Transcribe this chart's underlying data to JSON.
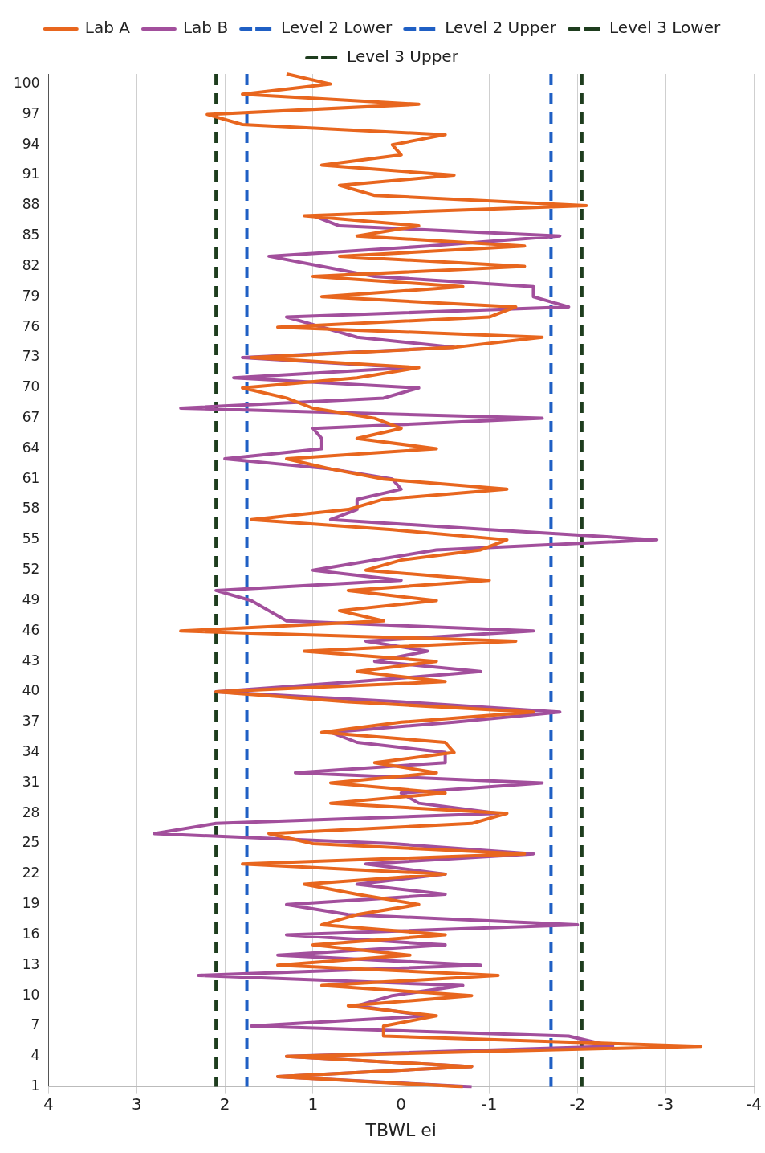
{
  "chart_data": {
    "type": "line",
    "orientation": "horizontal",
    "xlabel": "TBWL ei",
    "categories": [
      null,
      "100",
      null,
      null,
      "97",
      null,
      null,
      "94",
      null,
      null,
      "91",
      null,
      null,
      "88",
      null,
      null,
      "85",
      null,
      null,
      "82",
      null,
      null,
      "79",
      null,
      null,
      "76",
      null,
      null,
      "73",
      null,
      null,
      "70",
      null,
      null,
      "67",
      null,
      null,
      "64",
      null,
      null,
      "61",
      null,
      null,
      "58",
      null,
      null,
      "55",
      null,
      null,
      "52",
      null,
      null,
      "49",
      null,
      null,
      "46",
      null,
      null,
      "43",
      null,
      null,
      "40",
      null,
      null,
      "37",
      null,
      null,
      "34",
      null,
      null,
      "31",
      null,
      null,
      "28",
      null,
      null,
      "25",
      null,
      null,
      "22",
      null,
      null,
      "19",
      null,
      null,
      "16",
      null,
      null,
      "13",
      null,
      null,
      "10",
      null,
      null,
      "7",
      null,
      null,
      "4",
      null,
      null,
      "1"
    ],
    "series": [
      {
        "name": "Lab A",
        "color": "#e8661e",
        "values": [
          1.3,
          0.8,
          1.8,
          -0.2,
          2.2,
          1.8,
          -0.5,
          0.1,
          0.0,
          0.9,
          -0.6,
          0.7,
          0.3,
          -2.1,
          1.1,
          -0.2,
          0.5,
          -1.4,
          0.7,
          -1.4,
          1.0,
          -0.7,
          0.9,
          -1.3,
          -1.0,
          1.4,
          -1.6,
          -0.6,
          1.7,
          -0.2,
          0.5,
          1.8,
          1.3,
          1.0,
          0.3,
          0.0,
          0.5,
          -0.4,
          1.3,
          0.8,
          0.2,
          -1.2,
          0.2,
          0.6,
          1.7,
          0.1,
          -1.2,
          -0.9,
          0.0,
          0.4,
          -1.0,
          0.6,
          -0.4,
          0.7,
          0.2,
          2.5,
          -1.3,
          1.1,
          -0.4,
          0.5,
          -0.5,
          2.1,
          0.6,
          -1.5,
          0.0,
          0.9,
          -0.5,
          -0.6,
          0.3,
          -0.4,
          0.8,
          -0.5,
          0.8,
          -1.2,
          -0.8,
          1.5,
          1.0,
          -1.4,
          1.8,
          -0.5,
          1.1,
          0.5,
          -0.2,
          0.5,
          0.9,
          -0.5,
          1.0,
          -0.1,
          1.4,
          -1.1,
          0.9,
          -0.8,
          0.6,
          -0.4,
          0.2,
          0.2,
          -3.4,
          1.3,
          -0.8,
          1.4,
          -0.7
        ]
      },
      {
        "name": "Lab B",
        "color": "#a24f9c",
        "values": [
          null,
          null,
          null,
          null,
          null,
          null,
          null,
          null,
          null,
          null,
          null,
          null,
          null,
          null,
          1.0,
          0.7,
          -1.8,
          -0.3,
          1.5,
          0.9,
          0.3,
          -1.5,
          -1.5,
          -1.9,
          1.3,
          0.9,
          0.5,
          -0.6,
          1.8,
          -0.1,
          1.9,
          -0.2,
          0.2,
          2.5,
          -1.6,
          1.0,
          0.9,
          0.9,
          2.0,
          0.8,
          0.1,
          0.0,
          0.5,
          0.5,
          0.8,
          -1.0,
          -2.9,
          -0.4,
          0.3,
          1.0,
          0.0,
          2.1,
          1.7,
          1.5,
          1.3,
          -1.5,
          0.4,
          -0.3,
          0.3,
          -0.9,
          0.5,
          2.1,
          0.0,
          -1.8,
          -0.6,
          0.8,
          0.5,
          -0.5,
          -0.5,
          1.2,
          -1.6,
          0.0,
          -0.2,
          -1.1,
          2.1,
          2.8,
          0.1,
          -1.5,
          0.4,
          -0.5,
          0.5,
          -0.5,
          1.3,
          0.6,
          -2.0,
          1.3,
          -0.5,
          1.4,
          -0.9,
          2.3,
          -0.7,
          0.1,
          0.5,
          -0.3,
          1.7,
          -1.9,
          -2.4,
          1.3,
          -0.8,
          1.4,
          -0.8
        ]
      },
      {
        "name": "Level 2 Lower",
        "color": "#1f5fc4",
        "line_style": "dashed",
        "values": [
          -1.7,
          -1.7,
          -1.7,
          -1.7,
          -1.7,
          -1.7,
          -1.7,
          -1.7,
          -1.7,
          -1.7,
          -1.7,
          -1.7,
          -1.7,
          -1.7,
          -1.7,
          -1.7,
          -1.7,
          -1.7,
          -1.7,
          -1.7,
          -1.7,
          -1.7,
          -1.7,
          -1.7,
          -1.7,
          -1.7,
          -1.7,
          -1.7,
          -1.7,
          -1.7,
          -1.7,
          -1.7,
          -1.7,
          -1.7,
          -1.7,
          -1.7,
          -1.7,
          -1.7,
          -1.7,
          -1.7,
          -1.7,
          -1.7,
          -1.7,
          -1.7,
          -1.7,
          -1.7,
          -1.7,
          -1.7,
          -1.7,
          -1.7,
          -1.7,
          -1.7,
          -1.7,
          -1.7,
          -1.7,
          -1.7,
          -1.7,
          -1.7,
          -1.7,
          -1.7,
          -1.7,
          -1.7,
          -1.7,
          -1.7,
          -1.7,
          -1.7,
          -1.7,
          -1.7,
          -1.7,
          -1.7,
          -1.7,
          -1.7,
          -1.7,
          -1.7,
          -1.7,
          -1.7,
          -1.7,
          -1.7,
          -1.7,
          -1.7,
          -1.7,
          -1.7,
          -1.7,
          -1.7,
          -1.7,
          -1.7,
          -1.7,
          -1.7,
          -1.7,
          -1.7,
          -1.7,
          -1.7,
          -1.7,
          -1.7,
          -1.7,
          -1.7,
          -1.7,
          -1.7,
          -1.7,
          -1.7,
          -1.7
        ]
      },
      {
        "name": "Level 2 Upper",
        "color": "#1f5fc4",
        "line_style": "dashed",
        "values": [
          1.75,
          1.75,
          1.75,
          1.75,
          1.75,
          1.75,
          1.75,
          1.75,
          1.75,
          1.75,
          1.75,
          1.75,
          1.75,
          1.75,
          1.75,
          1.75,
          1.75,
          1.75,
          1.75,
          1.75,
          1.75,
          1.75,
          1.75,
          1.75,
          1.75,
          1.75,
          1.75,
          1.75,
          1.75,
          1.75,
          1.75,
          1.75,
          1.75,
          1.75,
          1.75,
          1.75,
          1.75,
          1.75,
          1.75,
          1.75,
          1.75,
          1.75,
          1.75,
          1.75,
          1.75,
          1.75,
          1.75,
          1.75,
          1.75,
          1.75,
          1.75,
          1.75,
          1.75,
          1.75,
          1.75,
          1.75,
          1.75,
          1.75,
          1.75,
          1.75,
          1.75,
          1.75,
          1.75,
          1.75,
          1.75,
          1.75,
          1.75,
          1.75,
          1.75,
          1.75,
          1.75,
          1.75,
          1.75,
          1.75,
          1.75,
          1.75,
          1.75,
          1.75,
          1.75,
          1.75,
          1.75,
          1.75,
          1.75,
          1.75,
          1.75,
          1.75,
          1.75,
          1.75,
          1.75,
          1.75,
          1.75,
          1.75,
          1.75,
          1.75,
          1.75,
          1.75,
          1.75,
          1.75,
          1.75,
          1.75,
          1.75
        ]
      },
      {
        "name": "Level 3 Lower",
        "color": "#1e3d1e",
        "line_style": "dashed",
        "values": [
          -2.05,
          -2.05,
          -2.05,
          -2.05,
          -2.05,
          -2.05,
          -2.05,
          -2.05,
          -2.05,
          -2.05,
          -2.05,
          -2.05,
          -2.05,
          -2.05,
          -2.05,
          -2.05,
          -2.05,
          -2.05,
          -2.05,
          -2.05,
          -2.05,
          -2.05,
          -2.05,
          -2.05,
          -2.05,
          -2.05,
          -2.05,
          -2.05,
          -2.05,
          -2.05,
          -2.05,
          -2.05,
          -2.05,
          -2.05,
          -2.05,
          -2.05,
          -2.05,
          -2.05,
          -2.05,
          -2.05,
          -2.05,
          -2.05,
          -2.05,
          -2.05,
          -2.05,
          -2.05,
          -2.05,
          -2.05,
          -2.05,
          -2.05,
          -2.05,
          -2.05,
          -2.05,
          -2.05,
          -2.05,
          -2.05,
          -2.05,
          -2.05,
          -2.05,
          -2.05,
          -2.05,
          -2.05,
          -2.05,
          -2.05,
          -2.05,
          -2.05,
          -2.05,
          -2.05,
          -2.05,
          -2.05,
          -2.05,
          -2.05,
          -2.05,
          -2.05,
          -2.05,
          -2.05,
          -2.05,
          -2.05,
          -2.05,
          -2.05,
          -2.05,
          -2.05,
          -2.05,
          -2.05,
          -2.05,
          -2.05,
          -2.05,
          -2.05,
          -2.05,
          -2.05,
          -2.05,
          -2.05,
          -2.05,
          -2.05,
          -2.05,
          -2.05,
          -2.05,
          -2.05,
          -2.05,
          -2.05,
          -2.05
        ]
      },
      {
        "name": "Level 3 Upper",
        "color": "#1e3d1e",
        "line_style": "dashed",
        "values": [
          2.1,
          2.1,
          2.1,
          2.1,
          2.1,
          2.1,
          2.1,
          2.1,
          2.1,
          2.1,
          2.1,
          2.1,
          2.1,
          2.1,
          2.1,
          2.1,
          2.1,
          2.1,
          2.1,
          2.1,
          2.1,
          2.1,
          2.1,
          2.1,
          2.1,
          2.1,
          2.1,
          2.1,
          2.1,
          2.1,
          2.1,
          2.1,
          2.1,
          2.1,
          2.1,
          2.1,
          2.1,
          2.1,
          2.1,
          2.1,
          2.1,
          2.1,
          2.1,
          2.1,
          2.1,
          2.1,
          2.1,
          2.1,
          2.1,
          2.1,
          2.1,
          2.1,
          2.1,
          2.1,
          2.1,
          2.1,
          2.1,
          2.1,
          2.1,
          2.1,
          2.1,
          2.1,
          2.1,
          2.1,
          2.1,
          2.1,
          2.1,
          2.1,
          2.1,
          2.1,
          2.1,
          2.1,
          2.1,
          2.1,
          2.1,
          2.1,
          2.1,
          2.1,
          2.1,
          2.1,
          2.1,
          2.1,
          2.1,
          2.1,
          2.1,
          2.1,
          2.1,
          2.1,
          2.1,
          2.1,
          2.1,
          2.1,
          2.1,
          2.1,
          2.1,
          2.1,
          2.1,
          2.1,
          2.1,
          2.1,
          2.1
        ]
      }
    ],
    "xlim": [
      4,
      -4
    ],
    "xticks": [
      4,
      3,
      2,
      1,
      0,
      -1,
      -2,
      -3,
      -4
    ],
    "grid": "x",
    "legend": "top",
    "marker": "none",
    "line_style": "solid"
  }
}
